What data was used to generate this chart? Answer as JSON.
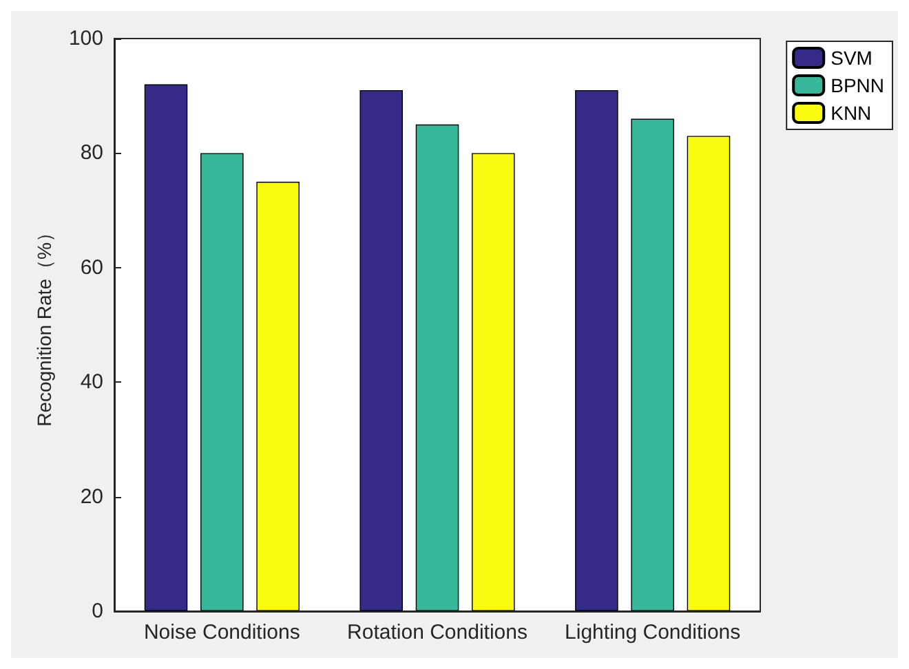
{
  "chart_data": {
    "type": "bar",
    "ylabel": "Recognition Rate（%）",
    "categories": [
      "Noise Conditions",
      "Rotation Conditions",
      "Lighting Conditions"
    ],
    "series": [
      {
        "name": "SVM",
        "color": "#352a87",
        "values": [
          92,
          91,
          91
        ]
      },
      {
        "name": "BPNN",
        "color": "#38b89b",
        "values": [
          80,
          85,
          86
        ]
      },
      {
        "name": "KNN",
        "color": "#f9fb0e",
        "values": [
          75,
          80,
          83
        ]
      }
    ],
    "ylim": [
      0,
      100
    ],
    "yticks": [
      0,
      20,
      40,
      60,
      80,
      100
    ],
    "grid": false,
    "legend": "top right"
  }
}
